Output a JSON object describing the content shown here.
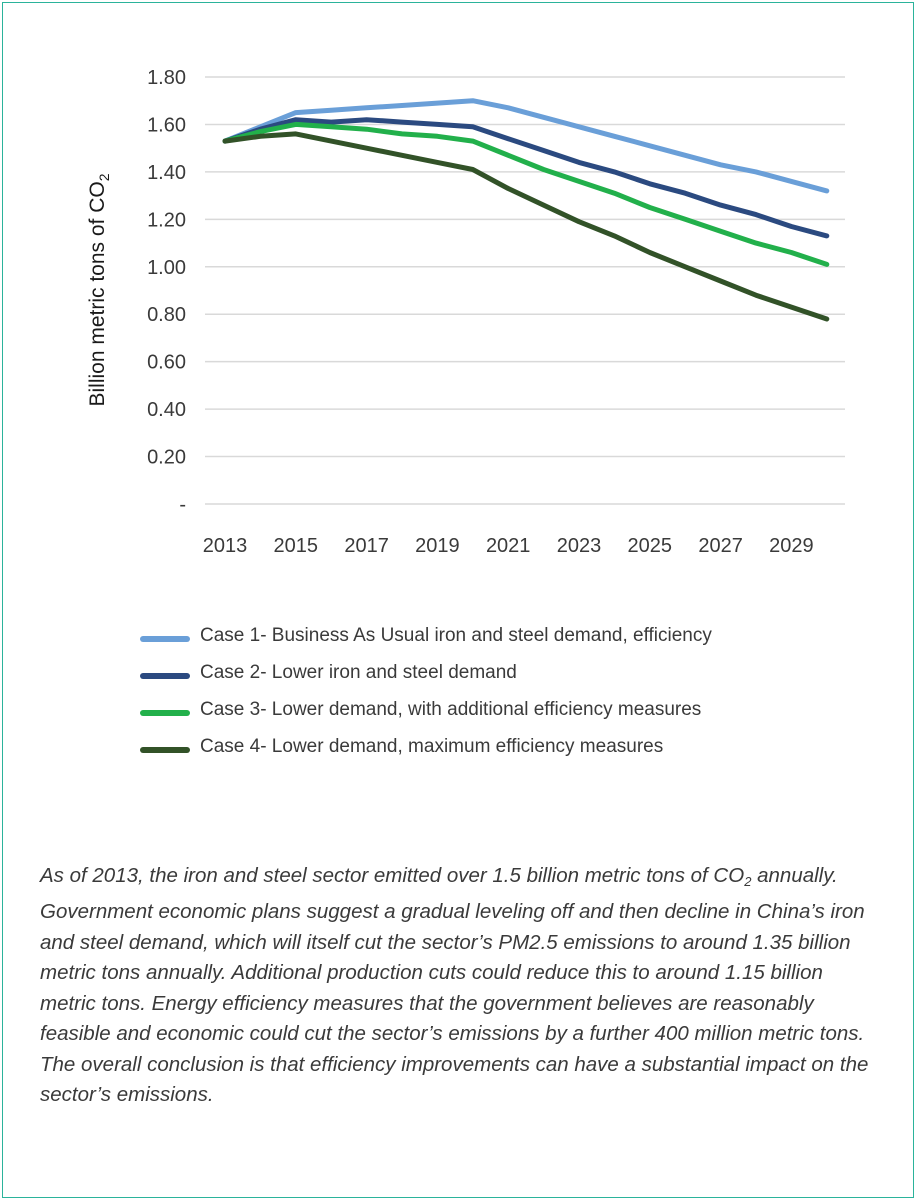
{
  "colors": {
    "frame_border": "#2bb39b",
    "gridline": "#d9d9d9",
    "series": [
      "#6a9fd8",
      "#2b4a80",
      "#22b04b",
      "#325228"
    ]
  },
  "chart_data": {
    "type": "line",
    "ylabel": "Billion metric tons of CO",
    "ylabel_subscript": "2",
    "y_ticks": [
      "-",
      "0.20",
      "0.40",
      "0.60",
      "0.80",
      "1.00",
      "1.20",
      "1.40",
      "1.60",
      "1.80"
    ],
    "ylim": [
      0,
      1.8
    ],
    "x_ticks": [
      "2013",
      "2015",
      "2017",
      "2019",
      "2021",
      "2023",
      "2025",
      "2027",
      "2029"
    ],
    "x": [
      2013,
      2014,
      2015,
      2016,
      2017,
      2018,
      2019,
      2020,
      2021,
      2022,
      2023,
      2024,
      2025,
      2026,
      2027,
      2028,
      2029,
      2030
    ],
    "grid": true,
    "legend_position": "bottom",
    "series": [
      {
        "name": "Case 1- Business As Usual iron and steel demand, efficiency",
        "values": [
          1.53,
          1.59,
          1.65,
          1.66,
          1.67,
          1.68,
          1.69,
          1.7,
          1.67,
          1.63,
          1.59,
          1.55,
          1.51,
          1.47,
          1.43,
          1.4,
          1.36,
          1.32
        ]
      },
      {
        "name": "Case 2- Lower iron and steel demand",
        "values": [
          1.53,
          1.58,
          1.62,
          1.61,
          1.62,
          1.61,
          1.6,
          1.59,
          1.54,
          1.49,
          1.44,
          1.4,
          1.35,
          1.31,
          1.26,
          1.22,
          1.17,
          1.13
        ]
      },
      {
        "name": "Case 3- Lower demand, with additional efficiency measures",
        "values": [
          1.53,
          1.57,
          1.6,
          1.59,
          1.58,
          1.56,
          1.55,
          1.53,
          1.47,
          1.41,
          1.36,
          1.31,
          1.25,
          1.2,
          1.15,
          1.1,
          1.06,
          1.01
        ]
      },
      {
        "name": "Case 4- Lower demand, maximum efficiency measures",
        "values": [
          1.53,
          1.55,
          1.56,
          1.53,
          1.5,
          1.47,
          1.44,
          1.41,
          1.33,
          1.26,
          1.19,
          1.13,
          1.06,
          1.0,
          0.94,
          0.88,
          0.83,
          0.78
        ]
      }
    ]
  },
  "caption": {
    "part1": "As of 2013, the iron and steel sector emitted over 1.5 billion metric tons of CO",
    "sub": "2",
    "part2": " annually. Government economic plans suggest a gradual leveling off and then decline in China’s iron and steel demand, which will itself cut the sector’s PM2.5 emissions to around 1.35 billion metric tons annually. Additional production cuts could reduce this to around 1.15 billion metric tons. Energy efficiency measures that the government believes are reasonably feasible and economic could cut the sector’s emissions by a further 400 million metric tons. The overall conclusion is that efficiency improvements can have a substantial impact on the sector’s emissions."
  }
}
